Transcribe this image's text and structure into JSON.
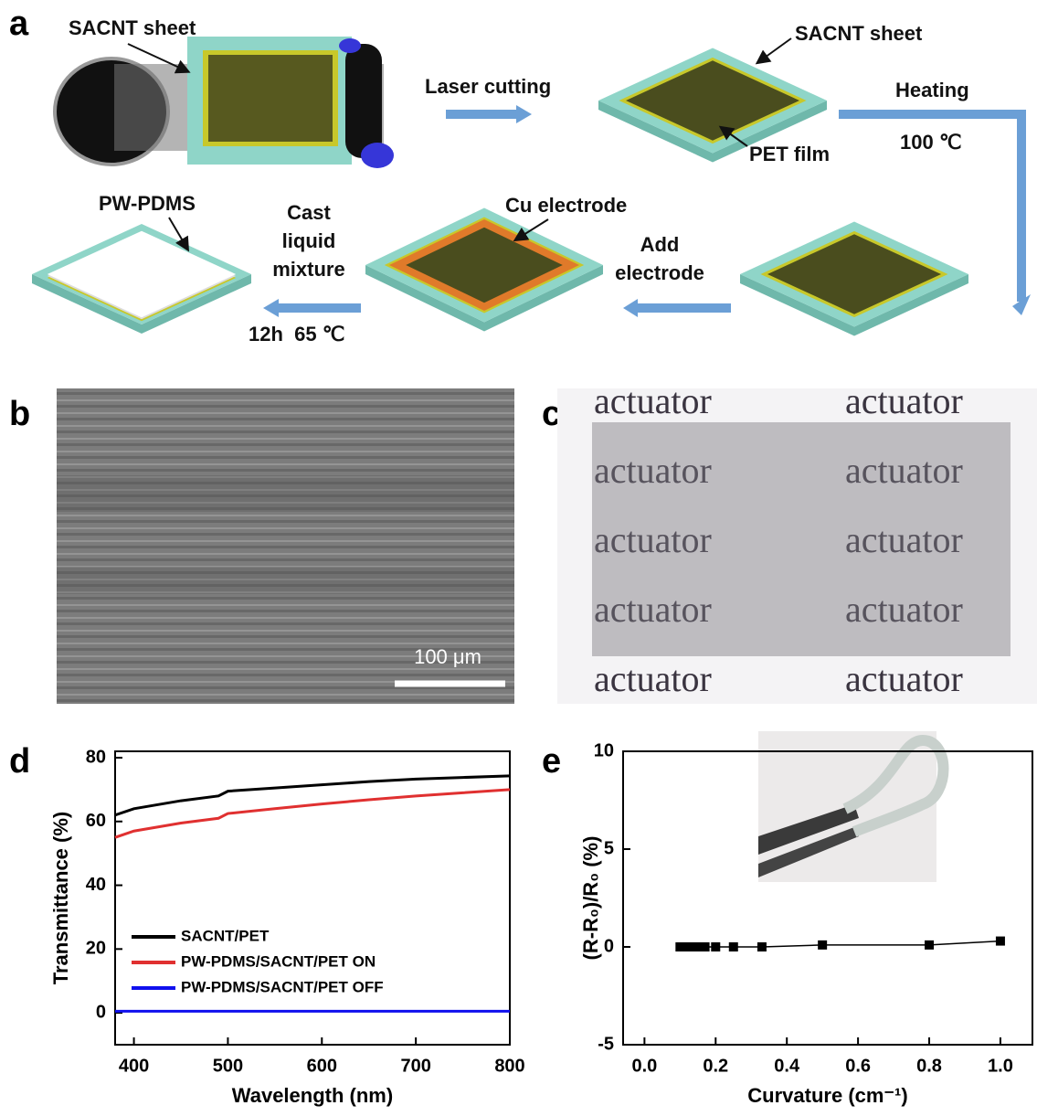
{
  "panel_a": {
    "label": "a",
    "sheet_label": "SACNT sheet",
    "step1": "Laser cutting",
    "sheet_label_2": "SACNT sheet",
    "film_label": "PET film",
    "step2": "Heating",
    "step2_temp": "100 ℃",
    "pdms_label": "PW-PDMS",
    "step4_lines": [
      "Cast",
      "liquid",
      "mixture"
    ],
    "step4_cond": "12h  65 ℃",
    "cu_label": "Cu electrode",
    "step3_lines": [
      "Add",
      "electrode"
    ]
  },
  "panel_b": {
    "label": "b",
    "scale_bar": "100 μm"
  },
  "panel_c": {
    "label": "c",
    "words": [
      "actuator",
      "actuator",
      "actuator",
      "actuator",
      "actuator",
      "actuator",
      "actuator",
      "actuator",
      "actuator",
      "actuator"
    ]
  },
  "chart_data": [
    {
      "type": "line",
      "panel": "d",
      "xlabel": "Wavelength (nm)",
      "ylabel": "Transmittance (%)",
      "x": [
        380,
        400,
        450,
        490,
        500,
        550,
        600,
        650,
        700,
        750,
        800
      ],
      "series": [
        {
          "name": "SACNT/PET",
          "color": "#000000",
          "values": [
            62,
            64,
            66.5,
            68,
            69.5,
            70.5,
            71.5,
            72.5,
            73.3,
            73.8,
            74.3
          ]
        },
        {
          "name": "PW-PDMS/SACNT/PET ON",
          "color": "#e03030",
          "values": [
            55,
            57,
            59.5,
            61,
            62.5,
            64,
            65.5,
            66.8,
            68,
            69,
            70
          ]
        },
        {
          "name": "PW-PDMS/SACNT/PET OFF",
          "color": "#1010ee",
          "values": [
            0.5,
            0.5,
            0.5,
            0.5,
            0.5,
            0.5,
            0.5,
            0.5,
            0.5,
            0.5,
            0.5
          ]
        }
      ],
      "xlim": [
        380,
        800
      ],
      "ylim": [
        -10,
        82
      ],
      "xticks": [
        400,
        500,
        600,
        700,
        800
      ],
      "yticks": [
        0,
        20,
        40,
        60,
        80
      ],
      "legend": "lower left"
    },
    {
      "type": "line",
      "panel": "e",
      "markers": "square",
      "xlabel": "Curvature (cm⁻¹)",
      "ylabel": "(R-R₀)/R₀ (%)",
      "x": [
        0.1,
        0.11,
        0.12,
        0.13,
        0.14,
        0.15,
        0.17,
        0.2,
        0.25,
        0.33,
        0.5,
        0.8,
        1.0
      ],
      "series": [
        {
          "color": "#000000",
          "values": [
            0,
            0,
            0,
            0,
            0,
            0,
            0,
            0,
            0,
            0,
            0.1,
            0.1,
            0.3
          ]
        }
      ],
      "xlim": [
        -0.06,
        1.09
      ],
      "ylim": [
        -5,
        10
      ],
      "xticks": [
        {
          "value": 0,
          "label": "0.0"
        },
        0.2,
        0.4,
        0.6,
        0.8,
        {
          "value": 1,
          "label": "1.0"
        }
      ],
      "yticks": [
        -5,
        0,
        5,
        10
      ]
    }
  ]
}
